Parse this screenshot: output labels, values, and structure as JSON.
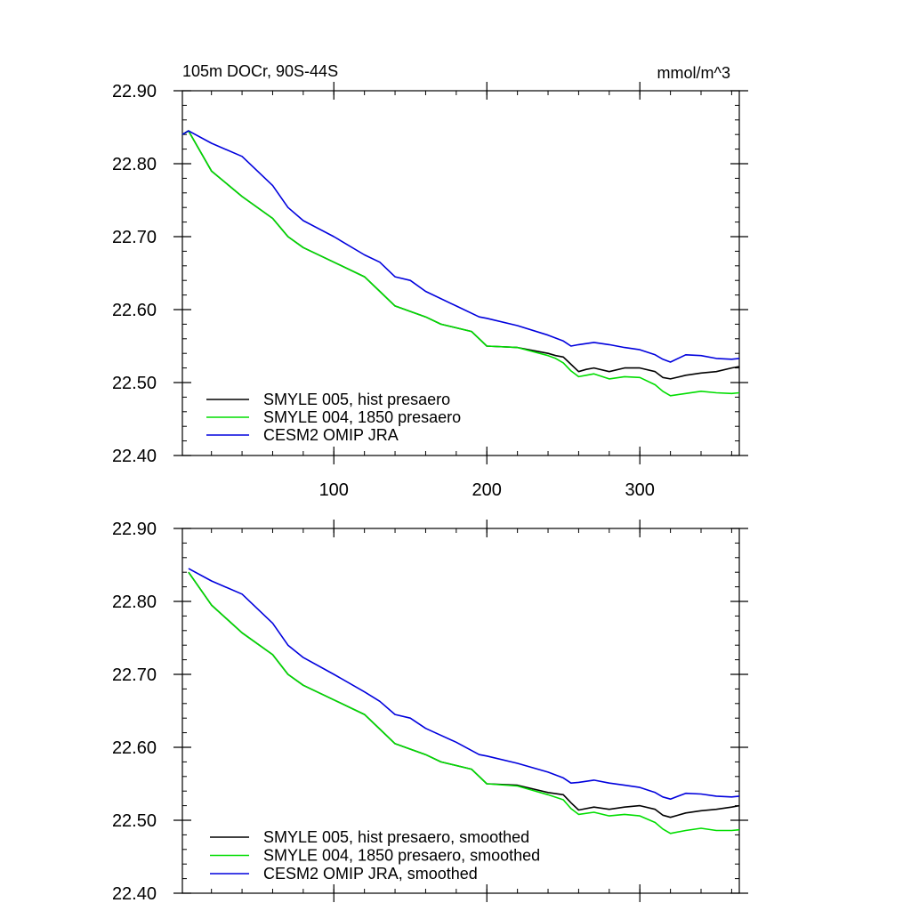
{
  "chart_data": [
    {
      "type": "line",
      "title": "105m DOCr, 90S-44S",
      "units": "mmol/m^3",
      "xlabel": "",
      "ylabel": "",
      "xlim": [
        1,
        365
      ],
      "ylim": [
        22.4,
        22.9
      ],
      "x_tick_values": [
        100,
        200,
        300
      ],
      "x_tick_labels": [
        "100",
        "200",
        "300"
      ],
      "y_tick_values": [
        22.4,
        22.5,
        22.6,
        22.7,
        22.8,
        22.9
      ],
      "y_tick_labels": [
        "22.40",
        "22.50",
        "22.60",
        "22.70",
        "22.80",
        "22.90"
      ],
      "grid": false,
      "legend_position": "bottom-left",
      "series": [
        {
          "name": "SMYLE 005, hist presaero",
          "color": "#000000",
          "x": [
            1,
            5,
            20,
            40,
            60,
            70,
            80,
            100,
            120,
            130,
            140,
            160,
            170,
            190,
            200,
            220,
            240,
            245,
            250,
            255,
            260,
            265,
            270,
            280,
            290,
            300,
            310,
            315,
            320,
            330,
            340,
            350,
            360,
            365
          ],
          "values": [
            22.84,
            22.845,
            22.79,
            22.755,
            22.725,
            22.7,
            22.685,
            22.665,
            22.645,
            22.625,
            22.605,
            22.59,
            22.58,
            22.57,
            22.55,
            22.548,
            22.54,
            22.537,
            22.535,
            22.525,
            22.515,
            22.518,
            22.52,
            22.515,
            22.52,
            22.52,
            22.515,
            22.507,
            22.505,
            22.51,
            22.513,
            22.515,
            22.52,
            22.522
          ]
        },
        {
          "name": "SMYLE 004, 1850 presaero",
          "color": "#00dd00",
          "x": [
            1,
            5,
            20,
            40,
            60,
            70,
            80,
            100,
            120,
            130,
            140,
            160,
            170,
            190,
            200,
            220,
            240,
            245,
            250,
            255,
            260,
            265,
            270,
            280,
            290,
            300,
            310,
            315,
            320,
            330,
            340,
            350,
            360,
            365
          ],
          "values": [
            22.84,
            22.845,
            22.79,
            22.755,
            22.725,
            22.7,
            22.685,
            22.665,
            22.645,
            22.625,
            22.605,
            22.59,
            22.58,
            22.57,
            22.55,
            22.548,
            22.537,
            22.533,
            22.527,
            22.516,
            22.508,
            22.51,
            22.512,
            22.505,
            22.508,
            22.507,
            22.497,
            22.488,
            22.482,
            22.485,
            22.488,
            22.486,
            22.485,
            22.486
          ]
        },
        {
          "name": "CESM2 OMIP JRA",
          "color": "#0000dd",
          "x": [
            1,
            5,
            20,
            40,
            60,
            70,
            80,
            100,
            120,
            130,
            140,
            150,
            160,
            180,
            195,
            200,
            220,
            240,
            250,
            255,
            260,
            270,
            280,
            290,
            300,
            310,
            315,
            320,
            330,
            340,
            350,
            360,
            365
          ],
          "values": [
            22.84,
            22.845,
            22.828,
            22.81,
            22.77,
            22.74,
            22.722,
            22.7,
            22.675,
            22.665,
            22.645,
            22.64,
            22.625,
            22.605,
            22.59,
            22.588,
            22.578,
            22.565,
            22.557,
            22.55,
            22.552,
            22.555,
            22.552,
            22.548,
            22.545,
            22.538,
            22.532,
            22.528,
            22.538,
            22.537,
            22.533,
            22.532,
            22.533
          ]
        }
      ]
    },
    {
      "type": "line",
      "title": "",
      "xlabel": "",
      "ylabel": "",
      "xlim": [
        1,
        365
      ],
      "ylim": [
        22.4,
        22.9
      ],
      "x_tick_values": [
        100,
        200,
        300
      ],
      "x_tick_labels": [],
      "y_tick_values": [
        22.4,
        22.5,
        22.6,
        22.7,
        22.8,
        22.9
      ],
      "y_tick_labels": [
        "22.40",
        "22.50",
        "22.60",
        "22.70",
        "22.80",
        "22.90"
      ],
      "grid": false,
      "legend_position": "bottom-left",
      "series": [
        {
          "name": "SMYLE 005, hist presaero, smoothed",
          "color": "#000000",
          "x": [
            5,
            20,
            40,
            60,
            70,
            80,
            100,
            120,
            130,
            140,
            160,
            170,
            190,
            200,
            220,
            240,
            250,
            255,
            260,
            270,
            280,
            290,
            300,
            310,
            315,
            320,
            330,
            340,
            350,
            360,
            365
          ],
          "values": [
            22.84,
            22.795,
            22.757,
            22.727,
            22.7,
            22.685,
            22.665,
            22.645,
            22.625,
            22.605,
            22.59,
            22.58,
            22.57,
            22.55,
            22.548,
            22.538,
            22.535,
            22.524,
            22.514,
            22.518,
            22.515,
            22.518,
            22.52,
            22.515,
            22.507,
            22.504,
            22.51,
            22.513,
            22.515,
            22.518,
            22.52
          ]
        },
        {
          "name": "SMYLE 004, 1850 presaero, smoothed",
          "color": "#00dd00",
          "x": [
            5,
            20,
            40,
            60,
            70,
            80,
            100,
            120,
            130,
            140,
            160,
            170,
            190,
            200,
            220,
            240,
            250,
            255,
            260,
            270,
            280,
            290,
            300,
            310,
            315,
            320,
            330,
            340,
            350,
            360,
            365
          ],
          "values": [
            22.84,
            22.795,
            22.757,
            22.727,
            22.7,
            22.685,
            22.665,
            22.645,
            22.625,
            22.605,
            22.59,
            22.58,
            22.57,
            22.55,
            22.547,
            22.535,
            22.528,
            22.516,
            22.508,
            22.511,
            22.506,
            22.508,
            22.506,
            22.497,
            22.488,
            22.482,
            22.486,
            22.489,
            22.486,
            22.486,
            22.487
          ]
        },
        {
          "name": "CESM2 OMIP JRA, smoothed",
          "color": "#0000dd",
          "x": [
            5,
            20,
            40,
            60,
            70,
            80,
            100,
            120,
            130,
            140,
            150,
            160,
            180,
            195,
            200,
            220,
            240,
            250,
            255,
            260,
            270,
            280,
            290,
            300,
            310,
            315,
            320,
            330,
            340,
            350,
            360,
            365
          ],
          "values": [
            22.845,
            22.828,
            22.81,
            22.77,
            22.74,
            22.723,
            22.7,
            22.676,
            22.663,
            22.645,
            22.64,
            22.626,
            22.607,
            22.59,
            22.588,
            22.578,
            22.566,
            22.558,
            22.551,
            22.552,
            22.555,
            22.551,
            22.548,
            22.545,
            22.538,
            22.532,
            22.529,
            22.537,
            22.536,
            22.533,
            22.532,
            22.533
          ]
        }
      ]
    }
  ]
}
